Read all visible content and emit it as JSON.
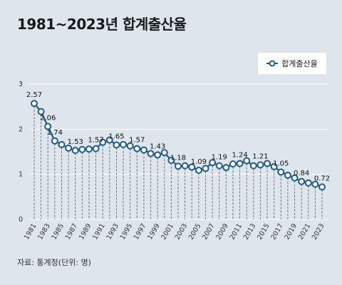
{
  "title": "1981~2023년 합계출산율",
  "source": "자료: 통계청(단위: 명)",
  "legend": {
    "label": "합계출산율"
  },
  "colors": {
    "line": "#1f5c87",
    "marker_fill": "#ffffff",
    "grid": "#ffffff",
    "drop": "#666666"
  },
  "chart_data": {
    "type": "line",
    "title": "1981~2023년 합계출산율",
    "xlabel": "",
    "ylabel": "",
    "ylim": [
      0,
      3
    ],
    "yticks": [
      0,
      1,
      2,
      3
    ],
    "grid": true,
    "legend_position": "top-right",
    "x": [
      1981,
      1982,
      1983,
      1984,
      1985,
      1986,
      1987,
      1988,
      1989,
      1990,
      1991,
      1992,
      1993,
      1994,
      1995,
      1996,
      1997,
      1998,
      1999,
      2000,
      2001,
      2002,
      2003,
      2004,
      2005,
      2006,
      2007,
      2008,
      2009,
      2010,
      2011,
      2012,
      2013,
      2014,
      2015,
      2016,
      2017,
      2018,
      2019,
      2020,
      2021,
      2022,
      2023
    ],
    "xtick_labels": [
      "1981",
      "1983",
      "1985",
      "1987",
      "1989",
      "1991",
      "1993",
      "1995",
      "1997",
      "1999",
      "2001",
      "2003",
      "2005",
      "2007",
      "2009",
      "2011",
      "2013",
      "2015",
      "2017",
      "2019",
      "2021",
      "2023"
    ],
    "series": [
      {
        "name": "합계출산율",
        "values": [
          2.57,
          2.39,
          2.06,
          1.74,
          1.66,
          1.58,
          1.53,
          1.55,
          1.56,
          1.57,
          1.71,
          1.76,
          1.65,
          1.66,
          1.63,
          1.57,
          1.54,
          1.46,
          1.43,
          1.48,
          1.31,
          1.18,
          1.19,
          1.16,
          1.09,
          1.13,
          1.26,
          1.19,
          1.15,
          1.23,
          1.24,
          1.3,
          1.19,
          1.21,
          1.24,
          1.17,
          1.05,
          0.98,
          0.92,
          0.84,
          0.81,
          0.78,
          0.72
        ]
      }
    ],
    "data_labels": [
      {
        "year": 1981,
        "text": "2.57"
      },
      {
        "year": 1983,
        "text": "2.06"
      },
      {
        "year": 1984,
        "text": "1.74"
      },
      {
        "year": 1987,
        "text": "1.53"
      },
      {
        "year": 1990,
        "text": "1.57"
      },
      {
        "year": 1993,
        "text": "1.65"
      },
      {
        "year": 1996,
        "text": "1.57"
      },
      {
        "year": 1999,
        "text": "1.43"
      },
      {
        "year": 2002,
        "text": "1.18"
      },
      {
        "year": 2005,
        "text": "1.09"
      },
      {
        "year": 2008,
        "text": "1.19"
      },
      {
        "year": 2011,
        "text": "1.24"
      },
      {
        "year": 2014,
        "text": "1.21"
      },
      {
        "year": 2017,
        "text": "1.05"
      },
      {
        "year": 2020,
        "text": "0.84"
      },
      {
        "year": 2023,
        "text": "0.72"
      }
    ]
  }
}
